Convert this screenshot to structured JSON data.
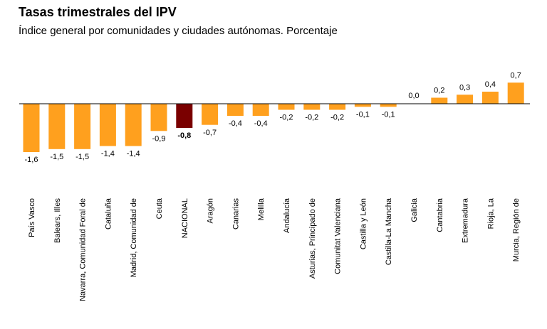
{
  "chart_data": {
    "type": "bar",
    "title": "Tasas trimestrales del IPV",
    "subtitle": "Índice general por comunidades y ciudades autónomas. Porcentaje",
    "categories": [
      "País Vasco",
      "Balears, Illes",
      "Navarra, Comunidad Foral de",
      "Cataluña",
      "Madrid, Comunidad de",
      "Ceuta",
      "NACIONAL",
      "Aragón",
      "Canarias",
      "Melilla",
      "Andalucía",
      "Asturias, Principado de",
      "Comunitat Valenciana",
      "Castilla y León",
      "Castilla-La Mancha",
      "Galicia",
      "Cantabria",
      "Extremadura",
      "Rioja, La",
      "Murcia, Región de"
    ],
    "values": [
      -1.6,
      -1.5,
      -1.5,
      -1.4,
      -1.4,
      -0.9,
      -0.8,
      -0.7,
      -0.4,
      -0.4,
      -0.2,
      -0.2,
      -0.2,
      -0.1,
      -0.1,
      0.0,
      0.2,
      0.3,
      0.4,
      0.7
    ],
    "value_labels": [
      "-1,6",
      "-1,5",
      "-1,5",
      "-1,4",
      "-1,4",
      "-0,9",
      "-0,8",
      "-0,7",
      "-0,4",
      "-0,4",
      "-0,2",
      "-0,2",
      "-0,2",
      "-0,1",
      "-0,1",
      "0,0",
      "0,2",
      "0,3",
      "0,4",
      "0,7"
    ],
    "highlight_category": "NACIONAL",
    "colors": {
      "bar": "#FFA01E",
      "highlight": "#7A0000",
      "axis": "#000000"
    },
    "grid": false,
    "legend": "none"
  }
}
